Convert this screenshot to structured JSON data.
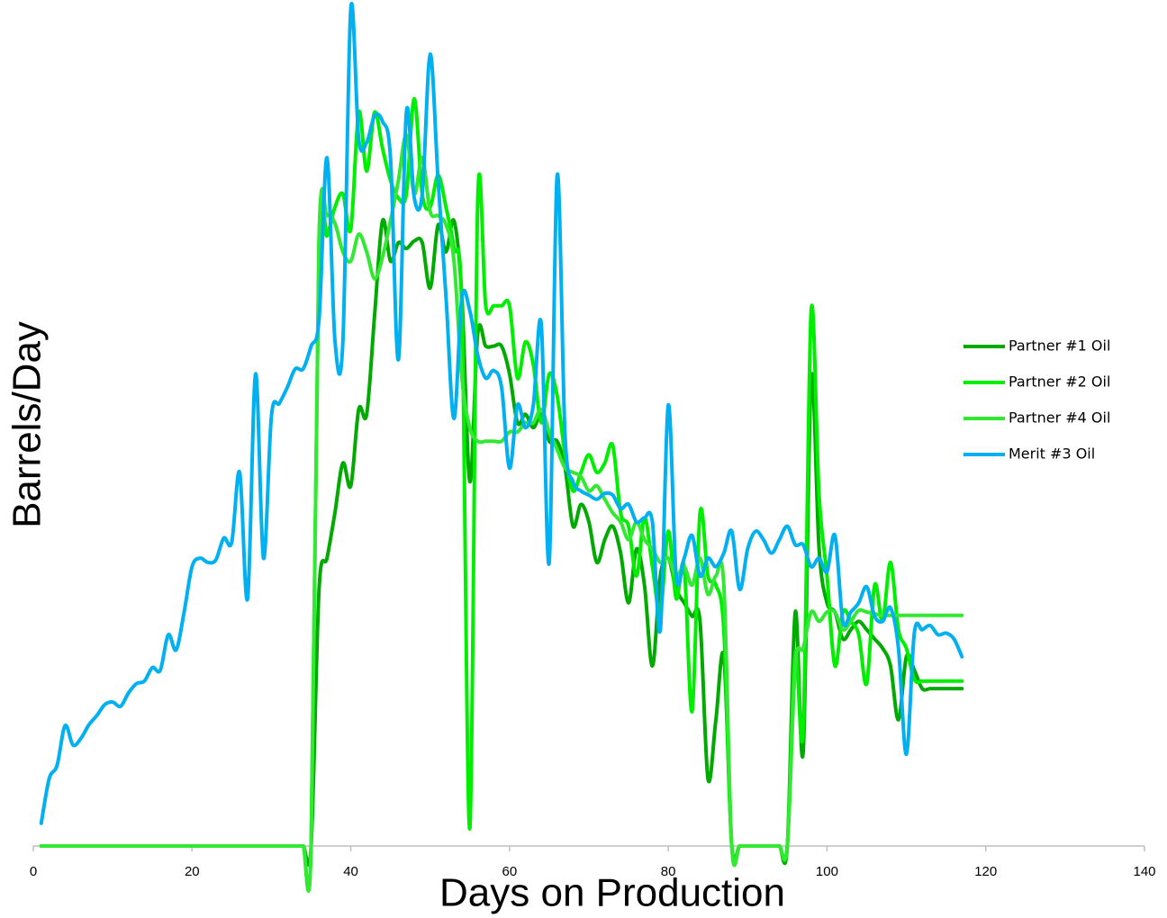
{
  "chart_data": {
    "type": "line",
    "xlabel": "Days on Production",
    "ylabel": "Barrels/Day",
    "xlim": [
      0,
      140
    ],
    "xticks": [
      0,
      20,
      40,
      60,
      80,
      100,
      120,
      140
    ],
    "ylim": [
      0,
      100
    ],
    "legend": "right",
    "x": [
      1,
      2,
      3,
      4,
      5,
      6,
      7,
      8,
      9,
      10,
      11,
      12,
      13,
      14,
      15,
      16,
      17,
      18,
      19,
      20,
      21,
      22,
      23,
      24,
      25,
      26,
      27,
      28,
      29,
      30,
      31,
      32,
      33,
      34,
      35,
      36,
      37,
      38,
      39,
      40,
      41,
      42,
      43,
      44,
      45,
      46,
      47,
      48,
      49,
      50,
      51,
      52,
      53,
      54,
      55,
      56,
      57,
      58,
      59,
      60,
      61,
      62,
      63,
      64,
      65,
      66,
      67,
      68,
      69,
      70,
      71,
      72,
      73,
      74,
      75,
      76,
      77,
      78,
      79,
      80,
      81,
      82,
      83,
      84,
      85,
      86,
      87,
      88,
      89,
      90,
      91,
      92,
      93,
      94,
      95,
      96,
      97,
      98,
      99,
      100,
      101,
      102,
      103,
      104,
      105,
      106,
      107,
      108,
      109,
      110,
      111,
      112,
      113,
      114,
      115,
      116,
      117
    ],
    "series": [
      {
        "name": "Partner #1 Oil",
        "color": "#00aa00",
        "values": [
          0,
          0,
          0,
          0,
          0,
          0,
          0,
          0,
          0,
          0,
          0,
          0,
          0,
          0,
          0,
          0,
          0,
          0,
          0,
          0,
          0,
          0,
          0,
          0,
          0,
          0,
          0,
          0,
          0,
          0,
          0,
          0,
          0,
          0,
          0,
          30.5,
          34.2,
          39.6,
          45.5,
          42.8,
          51.9,
          51.3,
          63.1,
          74.3,
          69.5,
          71.7,
          71,
          71.9,
          71.7,
          66.3,
          73.8,
          70.6,
          74.3,
          65.2,
          43.3,
          61,
          59.4,
          59.4,
          59.4,
          56.1,
          50.3,
          51.3,
          49.7,
          51.3,
          48.1,
          48.1,
          44.9,
          38,
          40.6,
          38.5,
          33.7,
          36.4,
          38,
          34.8,
          28.9,
          35.3,
          31,
          21.4,
          32.1,
          34.2,
          30.5,
          28.9,
          27.3,
          26.7,
          8,
          15,
          22.5,
          0,
          0,
          0,
          0,
          0,
          0,
          0,
          0,
          27.8,
          11.2,
          55.6,
          35.3,
          28.9,
          27.8,
          24.6,
          25.7,
          26.7,
          25.7,
          24.6,
          23.5,
          21.4,
          15,
          22.5,
          20.9,
          18.7,
          18.7,
          18.7,
          18.7,
          18.7,
          18.7
        ]
      },
      {
        "name": "Partner #2 Oil",
        "color": "#00ee00",
        "values": [
          0,
          0,
          0,
          0,
          0,
          0,
          0,
          0,
          0,
          0,
          0,
          0,
          0,
          0,
          0,
          0,
          0,
          0,
          0,
          0,
          0,
          0,
          0,
          0,
          0,
          0,
          0,
          0,
          0,
          0,
          0,
          0,
          0,
          0,
          0,
          72.2,
          72.5,
          75.9,
          77.5,
          73.3,
          87.2,
          80.2,
          87.2,
          82.9,
          79.1,
          77,
          77.5,
          88.8,
          77.5,
          75.9,
          79.7,
          75.9,
          71.1,
          63.6,
          2.1,
          77,
          64.2,
          64.2,
          64.2,
          64.2,
          55.6,
          59.9,
          57.2,
          50.3,
          56.1,
          53.5,
          46.5,
          42.2,
          44.4,
          46.5,
          44.4,
          45.5,
          47.6,
          39.6,
          38,
          32.1,
          39,
          33.2,
          27.8,
          37.4,
          29.4,
          33.2,
          16,
          39.6,
          32.1,
          31,
          25.7,
          0,
          0,
          0,
          0,
          0,
          0,
          0,
          0,
          23,
          13.9,
          63.6,
          41.7,
          32.1,
          21.4,
          27.8,
          26.7,
          25.1,
          19.3,
          31,
          26.7,
          33.7,
          25.7,
          23.5,
          19.8,
          19.6,
          19.6,
          19.6,
          19.6,
          19.6,
          19.6
        ]
      },
      {
        "name": "Partner #4 Oil",
        "color": "#33e833",
        "values": [
          0,
          0,
          0,
          0,
          0,
          0,
          0,
          0,
          0,
          0,
          0,
          0,
          0,
          0,
          0,
          0,
          0,
          0,
          0,
          0,
          0,
          0,
          0,
          0,
          0,
          0,
          0,
          0,
          0,
          0,
          0,
          0,
          0,
          0,
          0,
          71.7,
          74.9,
          74,
          70.6,
          69.5,
          72.7,
          70.6,
          67.4,
          70,
          74.3,
          79.1,
          84.5,
          77.5,
          81.8,
          75.4,
          74.9,
          73.8,
          69.5,
          55.6,
          49.7,
          48.1,
          48.1,
          48.1,
          48.1,
          49.2,
          49.2,
          50.3,
          50.3,
          51.9,
          49.2,
          47.1,
          44.9,
          44.4,
          43.9,
          42.2,
          42.8,
          41.2,
          39.6,
          38.5,
          36.4,
          38.5,
          36.4,
          35.3,
          33.7,
          34.2,
          32.1,
          33.2,
          31,
          34.2,
          29.9,
          32.1,
          31,
          0,
          0,
          0,
          0,
          0,
          0,
          0,
          0,
          21.4,
          23.5,
          27.8,
          26.7,
          27.8,
          27.8,
          25.7,
          26.7,
          28,
          27.8,
          27.6,
          27.4,
          27.4,
          27.4,
          27.4,
          27.4,
          27.4,
          27.4,
          27.4,
          27.4,
          27.4,
          27.4
        ]
      },
      {
        "name": "Merit #3 Oil",
        "color": "#00b0f0",
        "values": [
          2.7,
          8,
          9.6,
          14.3,
          12,
          12.8,
          14.4,
          15.5,
          16.8,
          17.1,
          16.6,
          18.2,
          19.3,
          19.6,
          21.2,
          20.9,
          25.1,
          23.3,
          27.8,
          33.2,
          34.2,
          33.7,
          34,
          36.6,
          36.1,
          44.4,
          29.4,
          56.1,
          34.2,
          51.1,
          52.6,
          54.5,
          56.7,
          56.7,
          59.4,
          62.6,
          81.8,
          60.1,
          59.9,
          99.5,
          84,
          83.6,
          86.8,
          86.1,
          81.8,
          57.8,
          87.2,
          77,
          77.5,
          94.1,
          79.1,
          65.2,
          50.8,
          65.2,
          63.6,
          58.3,
          55.6,
          56.5,
          54.5,
          44.9,
          52.4,
          49.7,
          52.4,
          62,
          33.7,
          79.7,
          48.7,
          43.3,
          42.2,
          41.7,
          41.2,
          41.9,
          41.7,
          40.1,
          40.6,
          38.5,
          39,
          38.5,
          25.7,
          52.4,
          32.1,
          34.2,
          36.9,
          32.1,
          34.2,
          33.2,
          34.8,
          37.4,
          30.5,
          35.3,
          37.4,
          36.4,
          34.8,
          36.4,
          38,
          35.8,
          35.8,
          33.2,
          34.2,
          32.6,
          36.9,
          26.7,
          27.8,
          28.9,
          30.8,
          27.3,
          26.7,
          28.3,
          23.5,
          10.9,
          25.3,
          25.7,
          26.2,
          25.1,
          25.3,
          24.6,
          22.5
        ]
      }
    ]
  }
}
